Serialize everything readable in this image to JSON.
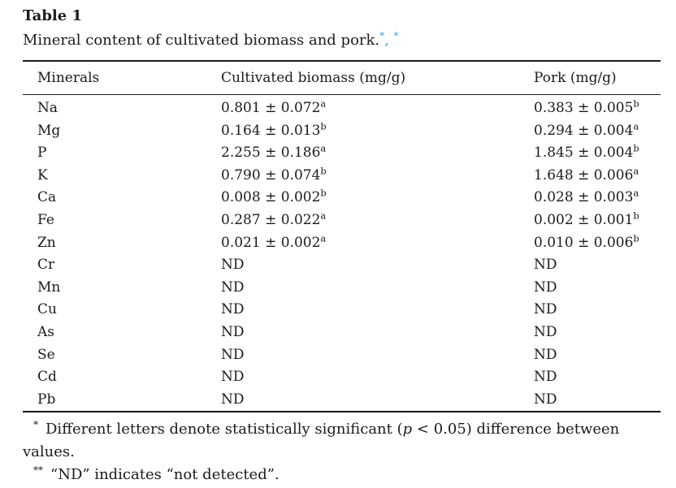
{
  "label": "Table 1",
  "caption": {
    "text": "Mineral content of cultivated biomass and pork.",
    "marker1": "*",
    "separator": ", ",
    "marker2": "*"
  },
  "colors": {
    "link_blue": "#46a4d6",
    "text": "#1b1b1b",
    "rule": "#1a1a1a",
    "background": "#ffffff"
  },
  "table": {
    "columns": [
      "Minerals",
      "Cultivated biomass (mg/g)",
      "Pork (mg/g)"
    ],
    "rows": [
      {
        "mineral": "Na",
        "biomass": "0.801 ± 0.072",
        "biomass_sup": "a",
        "pork": "0.383 ± 0.005",
        "pork_sup": "b"
      },
      {
        "mineral": "Mg",
        "biomass": "0.164 ± 0.013",
        "biomass_sup": "b",
        "pork": "0.294 ± 0.004",
        "pork_sup": "a"
      },
      {
        "mineral": "P",
        "biomass": "2.255 ± 0.186",
        "biomass_sup": "a",
        "pork": "1.845 ± 0.004",
        "pork_sup": "b"
      },
      {
        "mineral": "K",
        "biomass": "0.790 ± 0.074",
        "biomass_sup": "b",
        "pork": "1.648 ± 0.006",
        "pork_sup": "a"
      },
      {
        "mineral": "Ca",
        "biomass": "0.008 ± 0.002",
        "biomass_sup": "b",
        "pork": "0.028 ± 0.003",
        "pork_sup": "a"
      },
      {
        "mineral": "Fe",
        "biomass": "0.287 ± 0.022",
        "biomass_sup": "a",
        "pork": "0.002 ± 0.001",
        "pork_sup": "b"
      },
      {
        "mineral": "Zn",
        "biomass": "0.021 ± 0.002",
        "biomass_sup": "a",
        "pork": "0.010 ± 0.006",
        "pork_sup": "b"
      },
      {
        "mineral": "Cr",
        "biomass": "ND",
        "biomass_sup": "",
        "pork": "ND",
        "pork_sup": ""
      },
      {
        "mineral": "Mn",
        "biomass": "ND",
        "biomass_sup": "",
        "pork": "ND",
        "pork_sup": ""
      },
      {
        "mineral": "Cu",
        "biomass": "ND",
        "biomass_sup": "",
        "pork": "ND",
        "pork_sup": ""
      },
      {
        "mineral": "As",
        "biomass": "ND",
        "biomass_sup": "",
        "pork": "ND",
        "pork_sup": ""
      },
      {
        "mineral": "Se",
        "biomass": "ND",
        "biomass_sup": "",
        "pork": "ND",
        "pork_sup": ""
      },
      {
        "mineral": "Cd",
        "biomass": "ND",
        "biomass_sup": "",
        "pork": "ND",
        "pork_sup": ""
      },
      {
        "mineral": "Pb",
        "biomass": "ND",
        "biomass_sup": "",
        "pork": "ND",
        "pork_sup": ""
      }
    ]
  },
  "footnotes": [
    {
      "marker": "*",
      "pre": "Different letters denote statistically significant (",
      "italic": "p",
      "post": " < 0.05) difference between values."
    },
    {
      "marker": "**",
      "text": "“ND” indicates “not detected”."
    }
  ]
}
